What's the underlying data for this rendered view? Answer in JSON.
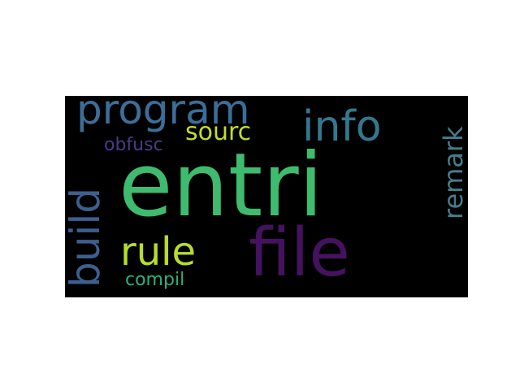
{
  "words": [
    {
      "text": "entri",
      "color": "#3ebb6e",
      "weight": 1.0
    },
    {
      "text": "file",
      "color": "#45125f",
      "weight": 0.72
    },
    {
      "text": "program",
      "color": "#3b6e98",
      "weight": 0.5
    },
    {
      "text": "info",
      "color": "#33788f",
      "weight": 0.47
    },
    {
      "text": "build",
      "color": "#3d5f8e",
      "weight": 0.47,
      "orientation": "vertical"
    },
    {
      "text": "rule",
      "color": "#b6dd2d",
      "weight": 0.44
    },
    {
      "text": "remark",
      "color": "#467d8a",
      "weight": 0.3,
      "orientation": "vertical"
    },
    {
      "text": "sourc",
      "color": "#c3dc28",
      "weight": 0.27
    },
    {
      "text": "obfusc",
      "color": "#4a3b86",
      "weight": 0.2
    },
    {
      "text": "compil",
      "color": "#28b27e",
      "weight": 0.2
    }
  ]
}
